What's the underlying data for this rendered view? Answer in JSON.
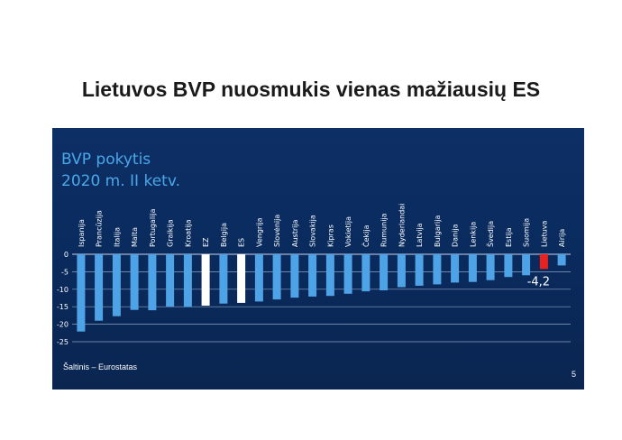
{
  "slide": {
    "title": "Lietuvos BVP nuosmukis vienas mažiausių ES",
    "page_number": "5"
  },
  "chart_data": {
    "type": "bar",
    "title": "BVP pokytis",
    "subtitle": "2020 m. II ketv.",
    "xlabel": "",
    "ylabel": "",
    "ylim": [
      -25,
      0
    ],
    "yticks": [
      0,
      -5,
      -10,
      -15,
      -20,
      -25
    ],
    "grid": true,
    "categories": [
      "Ispanija",
      "Prancūzija",
      "Italija",
      "Malta",
      "Portugalija",
      "Graikija",
      "Kroatija",
      "EZ",
      "Belgija",
      "ES",
      "Vengrija",
      "Slovėnija",
      "Austrija",
      "Slovakija",
      "Kipras",
      "Vokietija",
      "Čekija",
      "Rumunija",
      "Nyderlandai",
      "Latvija",
      "Bulgarija",
      "Danija",
      "Lenkija",
      "Švedija",
      "Estija",
      "Suomija",
      "Lietuva",
      "Airija"
    ],
    "values": [
      -22.1,
      -19.0,
      -17.7,
      -15.9,
      -16.0,
      -15.0,
      -15.1,
      -14.7,
      -14.1,
      -13.9,
      -13.5,
      -12.9,
      -12.4,
      -12.1,
      -11.9,
      -11.3,
      -10.6,
      -10.3,
      -9.4,
      -9.0,
      -8.6,
      -8.1,
      -7.9,
      -7.4,
      -6.5,
      -6.0,
      -4.2,
      -3.2
    ],
    "colors": {
      "default": "#4ea3e6",
      "highlight_white": "#ffffff",
      "highlight_red": "#e8231f"
    },
    "bar_colors": [
      "default",
      "default",
      "default",
      "default",
      "default",
      "default",
      "default",
      "highlight_white",
      "default",
      "highlight_white",
      "default",
      "default",
      "default",
      "default",
      "default",
      "default",
      "default",
      "default",
      "default",
      "default",
      "default",
      "default",
      "default",
      "default",
      "default",
      "default",
      "highlight_red",
      "default"
    ],
    "annotation": {
      "label": "-4,2"
    },
    "source": "Šaltinis – Eurostatas"
  }
}
